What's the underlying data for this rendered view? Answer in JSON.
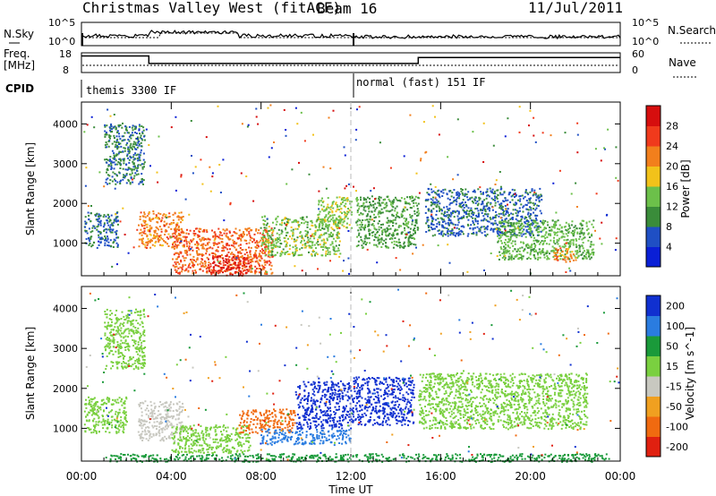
{
  "header": {
    "station": "Christmas Valley West (fitACF)",
    "beam": "Beam 16",
    "date": "11/Jul/2011"
  },
  "status_panel": {
    "left_labels": [
      "N.Sky",
      "Freq.",
      "[MHz]",
      "CPID"
    ],
    "right_labels": [
      "N.Search",
      "Nave"
    ],
    "nsky_ticks": [
      "10^5",
      "10^0"
    ],
    "nsearch_ticks": [
      "10^5",
      "10^0"
    ],
    "freq_ticks": [
      "18",
      "8"
    ],
    "nave_ticks": [
      "60",
      "0"
    ],
    "cpid_segments": [
      {
        "label": "themis 3300 IF",
        "start_hour": 0
      },
      {
        "label": "normal (fast) 151 IF",
        "start_hour": 12
      }
    ],
    "freq_profile": [
      {
        "t0": 0,
        "t1": 3.0,
        "mhz": 16.4
      },
      {
        "t0": 3.0,
        "t1": 12.0,
        "mhz": 12.6
      },
      {
        "t0": 12.0,
        "t1": 15.0,
        "mhz": 12.6
      },
      {
        "t0": 15.0,
        "t1": 24.0,
        "mhz": 15.6
      }
    ]
  },
  "chart_data": [
    {
      "type": "heatmap",
      "name": "power",
      "xlabel": "",
      "ylabel": "Slant Range [km]",
      "xlim": [
        0,
        24
      ],
      "ylim": [
        180,
        4550
      ],
      "yticks": [
        "1000",
        "2000",
        "3000",
        "4000"
      ],
      "colorbar_label": "Power [dB]",
      "colorbar_ticks": [
        "4",
        "8",
        "12",
        "16",
        "20",
        "24",
        "28"
      ],
      "colorbar_range": [
        0,
        32
      ],
      "colors": [
        "#0a1fd6",
        "#1f4fc4",
        "#3a8c3a",
        "#6cc04a",
        "#f2c21a",
        "#f27f1c",
        "#f03a1c",
        "#d60e0e"
      ],
      "regions": [
        {
          "t0": 0.1,
          "t1": 1.6,
          "r0": 900,
          "r1": 1800,
          "v": 8
        },
        {
          "t0": 1.0,
          "t1": 2.8,
          "r0": 2500,
          "r1": 4000,
          "v": 9
        },
        {
          "t0": 2.5,
          "t1": 4.5,
          "r0": 900,
          "r1": 1800,
          "v": 22
        },
        {
          "t0": 4.0,
          "t1": 8.5,
          "r0": 250,
          "r1": 1400,
          "v": 24
        },
        {
          "t0": 5.5,
          "t1": 7.5,
          "r0": 200,
          "r1": 700,
          "v": 28
        },
        {
          "t0": 8.0,
          "t1": 11.5,
          "r0": 700,
          "r1": 1700,
          "v": 14
        },
        {
          "t0": 10.5,
          "t1": 12.0,
          "r0": 1400,
          "r1": 2200,
          "v": 15
        },
        {
          "t0": 12.2,
          "t1": 15.0,
          "r0": 900,
          "r1": 2200,
          "v": 11
        },
        {
          "t0": 15.3,
          "t1": 20.5,
          "r0": 1200,
          "r1": 2400,
          "v": 7
        },
        {
          "t0": 18.5,
          "t1": 22.8,
          "r0": 600,
          "r1": 1600,
          "v": 13
        },
        {
          "t0": 21.0,
          "t1": 22.0,
          "r0": 550,
          "r1": 900,
          "v": 22
        }
      ]
    },
    {
      "type": "heatmap",
      "name": "velocity",
      "xlabel": "Time UT",
      "ylabel": "Slant Range [km]",
      "xlim": [
        0,
        24
      ],
      "xticks": [
        "00:00",
        "04:00",
        "08:00",
        "12:00",
        "16:00",
        "20:00",
        "00:00"
      ],
      "ylim": [
        180,
        4550
      ],
      "yticks": [
        "1000",
        "2000",
        "3000",
        "4000"
      ],
      "colorbar_label": "Velocity [m s^-1]",
      "colorbar_ticks": [
        "200",
        "100",
        "50",
        "15",
        "-15",
        "-50",
        "-100",
        "-200"
      ],
      "colorbar_range": [
        -250,
        250
      ],
      "colors": [
        "#1030d0",
        "#2a7ce0",
        "#1a9a3a",
        "#7ad040",
        "#c8c8c0",
        "#f0a020",
        "#f06a10",
        "#e02010"
      ],
      "regions": [
        {
          "t0": 0.1,
          "t1": 2.0,
          "r0": 900,
          "r1": 1800,
          "v": 0
        },
        {
          "t0": 1.0,
          "t1": 2.8,
          "r0": 2500,
          "r1": 4000,
          "v": 0
        },
        {
          "t0": 2.5,
          "t1": 4.5,
          "r0": 700,
          "r1": 1700,
          "v": -40
        },
        {
          "t0": 4.0,
          "t1": 7.5,
          "r0": 400,
          "r1": 1100,
          "v": 0
        },
        {
          "t0": 7.0,
          "t1": 9.5,
          "r0": 900,
          "r1": 1500,
          "v": -150
        },
        {
          "t0": 9.5,
          "t1": 12.0,
          "r0": 1000,
          "r1": 2200,
          "v": 220
        },
        {
          "t0": 12.0,
          "t1": 14.8,
          "r0": 1100,
          "r1": 2300,
          "v": 180
        },
        {
          "t0": 8.0,
          "t1": 12.0,
          "r0": 600,
          "r1": 1000,
          "v": 60
        },
        {
          "t0": 15.0,
          "t1": 22.5,
          "r0": 1000,
          "r1": 2400,
          "v": 0
        },
        {
          "t0": 1.0,
          "t1": 23.5,
          "r0": 180,
          "r1": 380,
          "v": 40
        }
      ]
    }
  ]
}
